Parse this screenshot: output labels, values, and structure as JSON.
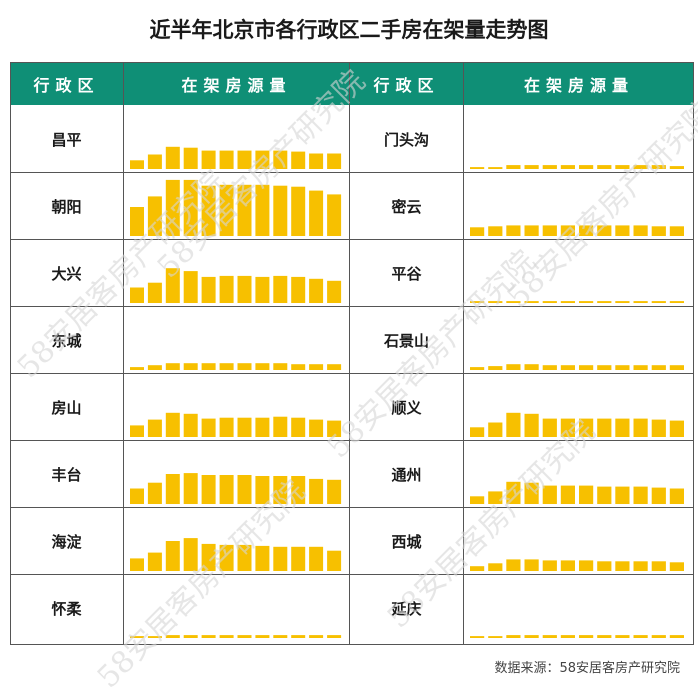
{
  "title": "近半年北京市各行政区二手房在架量走势图",
  "headers": {
    "district": "行政区",
    "listing": "在架房源量"
  },
  "source": "数据来源：58安居客房产研究院",
  "watermark": "58安居客房产研究院",
  "colors": {
    "header_bg": "#0f8f76",
    "bar": "#f7c000",
    "grid": "#555555"
  },
  "chart_data": {
    "type": "bar",
    "title": "近半年北京市各行政区二手房在架量走势图",
    "ylabel": "在架房源量",
    "xlabel": "",
    "note": "每个行政区为一组无坐标轴的迷你柱状图，数值为相对高度估计",
    "ylim": [
      0,
      60
    ],
    "series": [
      {
        "name": "昌平",
        "values": [
          9,
          15,
          23,
          22,
          19,
          19,
          19,
          19,
          19,
          18,
          16,
          16
        ]
      },
      {
        "name": "朝阳",
        "values": [
          30,
          41,
          58,
          58,
          52,
          53,
          53,
          53,
          52,
          51,
          47,
          43
        ]
      },
      {
        "name": "大兴",
        "values": [
          16,
          21,
          36,
          33,
          27,
          28,
          28,
          27,
          28,
          27,
          25,
          23
        ]
      },
      {
        "name": "东城",
        "values": [
          3,
          5,
          7,
          7,
          7,
          7,
          7,
          7,
          7,
          6,
          6,
          6
        ]
      },
      {
        "name": "房山",
        "values": [
          12,
          18,
          25,
          24,
          19,
          20,
          20,
          20,
          21,
          20,
          18,
          17
        ]
      },
      {
        "name": "丰台",
        "values": [
          16,
          22,
          31,
          32,
          30,
          30,
          30,
          29,
          29,
          29,
          26,
          25
        ]
      },
      {
        "name": "海淀",
        "values": [
          13,
          19,
          31,
          34,
          28,
          27,
          27,
          26,
          25,
          25,
          25,
          21
        ]
      },
      {
        "name": "怀柔",
        "values": [
          2,
          2,
          3,
          3,
          3,
          3,
          3,
          3,
          3,
          3,
          3,
          3
        ]
      },
      {
        "name": "门头沟",
        "values": [
          2,
          2,
          4,
          4,
          4,
          4,
          4,
          4,
          4,
          4,
          4,
          3
        ]
      },
      {
        "name": "密云",
        "values": [
          9,
          10,
          11,
          11,
          11,
          11,
          11,
          11,
          11,
          11,
          10,
          10
        ]
      },
      {
        "name": "平谷",
        "values": [
          2,
          2,
          2,
          2,
          2,
          2,
          2,
          2,
          2,
          2,
          2,
          2
        ]
      },
      {
        "name": "石景山",
        "values": [
          3,
          4,
          6,
          6,
          5,
          5,
          5,
          5,
          5,
          5,
          5,
          5
        ]
      },
      {
        "name": "顺义",
        "values": [
          10,
          15,
          25,
          24,
          19,
          19,
          19,
          19,
          19,
          19,
          18,
          17
        ]
      },
      {
        "name": "通州",
        "values": [
          8,
          13,
          23,
          22,
          19,
          19,
          19,
          18,
          18,
          18,
          17,
          16
        ]
      },
      {
        "name": "西城",
        "values": [
          5,
          8,
          12,
          12,
          11,
          11,
          11,
          10,
          10,
          10,
          10,
          9
        ]
      },
      {
        "name": "延庆",
        "values": [
          2,
          2,
          3,
          3,
          3,
          3,
          3,
          3,
          3,
          3,
          3,
          3
        ]
      }
    ]
  }
}
